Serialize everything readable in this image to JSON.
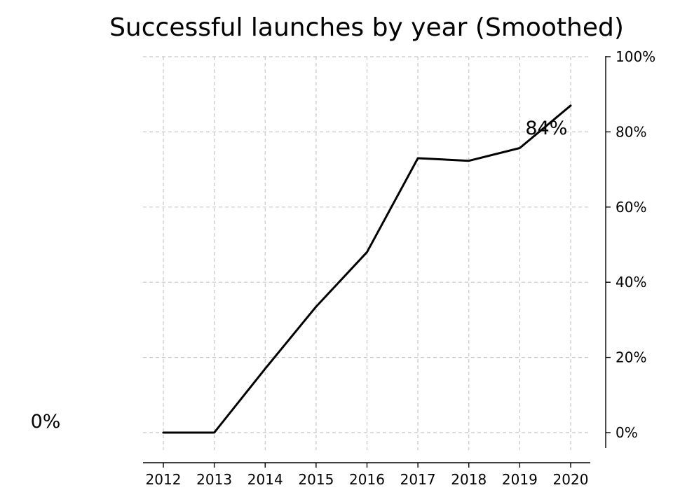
{
  "chart_data": {
    "type": "line",
    "title": "Successful launches by year (Smoothed)",
    "xlabel": "",
    "ylabel": "",
    "x": [
      "2012",
      "2013",
      "2014",
      "2015",
      "2016",
      "2017",
      "2018",
      "2019",
      "2020"
    ],
    "series": [
      {
        "values": [
          0,
          0,
          17,
          33.5,
          48,
          73,
          72.3,
          75.7,
          87
        ],
        "color": "#000000"
      }
    ],
    "ylim": [
      0,
      100
    ],
    "yticks": [
      0,
      20,
      40,
      60,
      80,
      100
    ],
    "ytick_labels": [
      "0%",
      "20%",
      "40%",
      "60%",
      "80%",
      "100%"
    ],
    "y_axis_side": "right",
    "grid": true,
    "legend": "none",
    "annotations": [
      {
        "text": "84%",
        "x": "2019",
        "y": 81
      },
      {
        "text": "0%",
        "position": "left-of-plot",
        "y": 3
      }
    ]
  }
}
